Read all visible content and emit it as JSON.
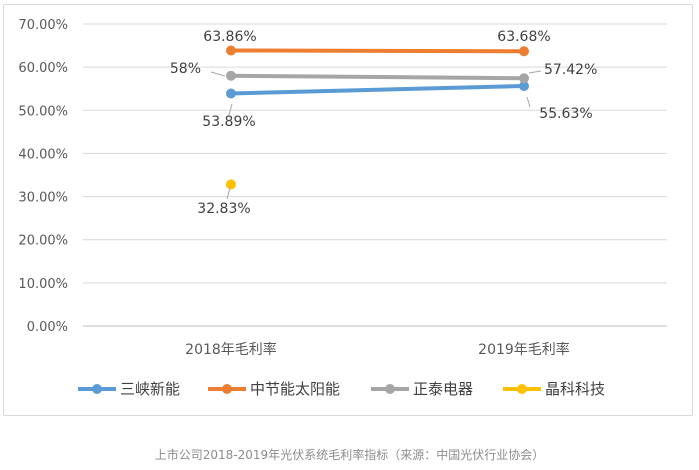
{
  "chart_data": {
    "type": "line",
    "title": "",
    "xlabel": "",
    "ylabel": "",
    "categories": [
      "2018年毛利率",
      "2019年毛利率"
    ],
    "ylim": [
      0,
      70
    ],
    "yticks": [
      "0.00%",
      "10.00%",
      "20.00%",
      "30.00%",
      "40.00%",
      "50.00%",
      "60.00%",
      "70.00%"
    ],
    "grid": true,
    "legend_position": "bottom",
    "series": [
      {
        "name": "三峡新能",
        "color": "#5b9bd5",
        "values": [
          53.89,
          55.63
        ],
        "labels": [
          "53.89%",
          "55.63%"
        ]
      },
      {
        "name": "中节能太阳能",
        "color": "#ed7d31",
        "values": [
          63.86,
          63.68
        ],
        "labels": [
          "63.86%",
          "63.68%"
        ]
      },
      {
        "name": "正泰电器",
        "color": "#a5a5a5",
        "values": [
          58,
          57.42
        ],
        "labels": [
          "58%",
          "57.42%"
        ]
      },
      {
        "name": "晶科科技",
        "color": "#ffc000",
        "values": [
          32.83,
          null
        ],
        "labels": [
          "32.83%",
          ""
        ]
      }
    ]
  },
  "caption": "上市公司2018-2019年光伏系统毛利率指标（来源：中国光伏行业协会）"
}
